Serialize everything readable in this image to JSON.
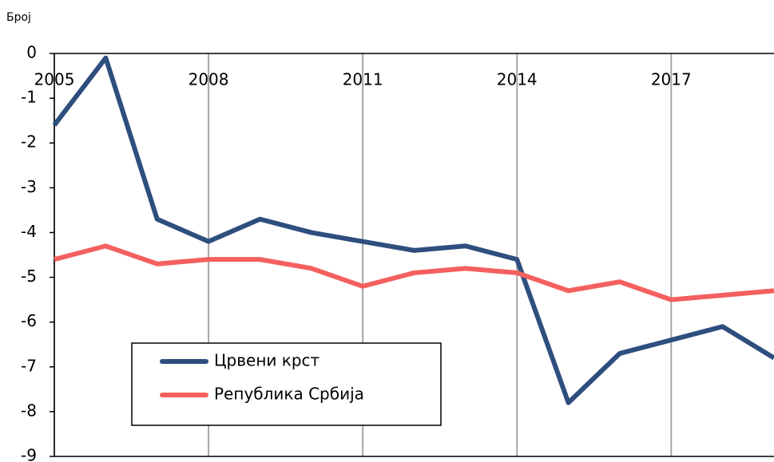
{
  "chart_data": {
    "type": "line",
    "y_label": "Број",
    "x": [
      2005,
      2006,
      2007,
      2008,
      2009,
      2010,
      2011,
      2012,
      2013,
      2014,
      2015,
      2016,
      2017,
      2018,
      2019
    ],
    "series": [
      {
        "name": "Црвени крст",
        "color": "#2e4e7e",
        "values": [
          -1.6,
          -0.1,
          -3.7,
          -4.2,
          -3.7,
          -4.0,
          -4.2,
          -4.4,
          -4.3,
          -4.6,
          -7.8,
          -6.7,
          -6.4,
          -6.1,
          -6.8
        ]
      },
      {
        "name": "Република Србија",
        "color": "#f4605f",
        "values": [
          -4.6,
          -4.3,
          -4.7,
          -4.6,
          -4.6,
          -4.8,
          -5.2,
          -4.9,
          -4.8,
          -4.9,
          -5.3,
          -5.1,
          -5.5,
          -5.4,
          -5.3
        ]
      }
    ],
    "xlim": [
      2005,
      2019
    ],
    "xticks": [
      2005,
      2008,
      2011,
      2014,
      2017
    ],
    "ylim": [
      -9,
      0
    ],
    "yticks": [
      0,
      -1,
      -2,
      -3,
      -4,
      -5,
      -6,
      -7,
      -8,
      -9
    ],
    "grid": "x",
    "legend": "lower left"
  }
}
